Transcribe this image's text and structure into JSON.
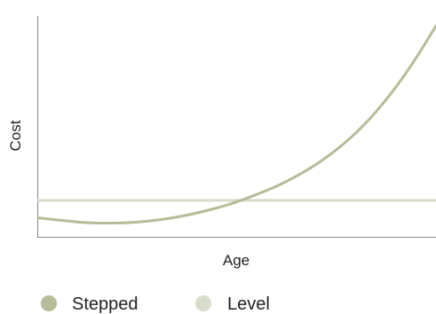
{
  "chart_data": {
    "type": "line",
    "title": "",
    "xlabel": "Age",
    "ylabel": "Cost",
    "grid": false,
    "legend_placement": "bottom-left",
    "x_range": [
      0,
      100
    ],
    "y_range": [
      0,
      100
    ],
    "series": [
      {
        "name": "Stepped",
        "color": "#b5bc98",
        "x": [
          0,
          10,
          16,
          25,
          35,
          45,
          52,
          60,
          65,
          70,
          75,
          80,
          85,
          90,
          95,
          100
        ],
        "y": [
          8.6,
          6.7,
          6.2,
          6.7,
          9.0,
          13.1,
          17.2,
          23.0,
          27.6,
          33.0,
          39.5,
          47.3,
          56.8,
          68.0,
          81.0,
          95.5
        ]
      },
      {
        "name": "Level",
        "color": "#d7dccb",
        "x": [
          0,
          100
        ],
        "y": [
          16.5,
          16.5
        ]
      }
    ]
  }
}
